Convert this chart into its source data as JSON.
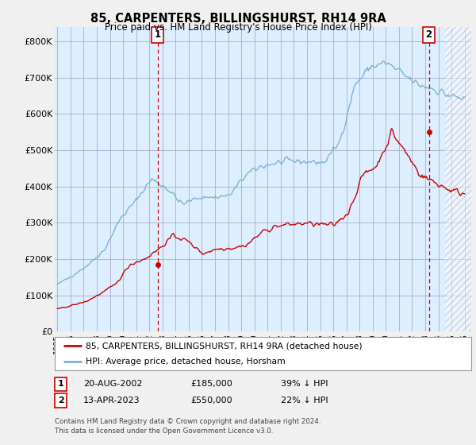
{
  "title": "85, CARPENTERS, BILLINGSHURST, RH14 9RA",
  "subtitle": "Price paid vs. HM Land Registry's House Price Index (HPI)",
  "hpi_color": "#7fb3d3",
  "hpi_fill": "#ddeeff",
  "price_color": "#cc0000",
  "marker1_date": 2002.62,
  "marker1_price": 185000,
  "marker2_date": 2023.28,
  "marker2_price": 550000,
  "legend_entry1": "85, CARPENTERS, BILLINGSHURST, RH14 9RA (detached house)",
  "legend_entry2": "HPI: Average price, detached house, Horsham",
  "table_row1": [
    "1",
    "20-AUG-2002",
    "£185,000",
    "39% ↓ HPI"
  ],
  "table_row2": [
    "2",
    "13-APR-2023",
    "£550,000",
    "22% ↓ HPI"
  ],
  "footnote1": "Contains HM Land Registry data © Crown copyright and database right 2024.",
  "footnote2": "This data is licensed under the Open Government Licence v3.0.",
  "ylim": [
    0,
    840000
  ],
  "yticks": [
    0,
    100000,
    200000,
    300000,
    400000,
    500000,
    600000,
    700000,
    800000
  ],
  "ytick_labels": [
    "£0",
    "£100K",
    "£200K",
    "£300K",
    "£400K",
    "£500K",
    "£600K",
    "£700K",
    "£800K"
  ],
  "xtick_years": [
    1995,
    1996,
    1997,
    1998,
    1999,
    2000,
    2001,
    2002,
    2003,
    2004,
    2005,
    2006,
    2007,
    2008,
    2009,
    2010,
    2011,
    2012,
    2013,
    2014,
    2015,
    2016,
    2017,
    2018,
    2019,
    2020,
    2021,
    2022,
    2023,
    2024,
    2025,
    2026
  ],
  "xlim": [
    1994.8,
    2026.5
  ],
  "background_color": "#f0f0f0",
  "plot_bg_color": "#ddeeff",
  "grid_color": "#aaaacc",
  "hatch_start": 2024.5
}
